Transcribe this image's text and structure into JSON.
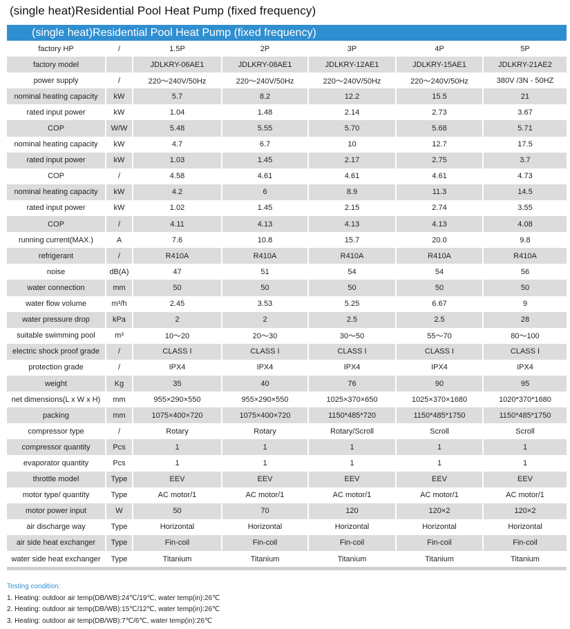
{
  "page_title": "(single heat)Residential Pool Heat Pump (fixed frequency)",
  "banner_title": "(single heat)Residential Pool Heat Pump (fixed frequency)",
  "colors": {
    "banner": "#2f8fd0",
    "row_shade": "#dcdcdc",
    "notes_title": "#2f8fd0"
  },
  "table": {
    "rows": [
      {
        "label": "factory HP",
        "unit": "/",
        "values": [
          "1.5P",
          "2P",
          "3P",
          "4P",
          "5P"
        ]
      },
      {
        "label": "factory model",
        "unit": "",
        "values": [
          "JDLKRY-06AE1",
          "JDLKRY-08AE1",
          "JDLKRY-12AE1",
          "JDLKRY-15AE1",
          "JDLKRY-21AE2"
        ]
      },
      {
        "label": "power supply",
        "unit": "/",
        "values": [
          "220～240V/50Hz",
          "220～240V/50Hz",
          "220～240V/50Hz",
          "220～240V/50Hz",
          "380V /3N - 50HZ"
        ]
      },
      {
        "label": "nominal heating capacity",
        "unit": "kW",
        "values": [
          "5.7",
          "8.2",
          "12.2",
          "15.5",
          "21"
        ]
      },
      {
        "label": "rated input power",
        "unit": "kW",
        "values": [
          "1.04",
          "1.48",
          "2.14",
          "2.73",
          "3.67"
        ]
      },
      {
        "label": "COP",
        "unit": "W/W",
        "values": [
          "5.48",
          "5.55",
          "5.70",
          "5.68",
          "5.71"
        ]
      },
      {
        "label": "nominal heating capacity",
        "unit": "kW",
        "values": [
          "4.7",
          "6.7",
          "10",
          "12.7",
          "17.5"
        ]
      },
      {
        "label": "rated input power",
        "unit": "kW",
        "values": [
          "1.03",
          "1.45",
          "2.17",
          "2.75",
          "3.7"
        ]
      },
      {
        "label": "COP",
        "unit": "/",
        "values": [
          "4.58",
          "4.61",
          "4.61",
          "4.61",
          "4.73"
        ]
      },
      {
        "label": "nominal heating capacity",
        "unit": "kW",
        "values": [
          "4.2",
          "6",
          "8.9",
          "11.3",
          "14.5"
        ]
      },
      {
        "label": "rated input power",
        "unit": "kW",
        "values": [
          "1.02",
          "1.45",
          "2.15",
          "2.74",
          "3.55"
        ]
      },
      {
        "label": "COP",
        "unit": "/",
        "values": [
          "4.11",
          "4.13",
          "4.13",
          "4.13",
          "4.08"
        ]
      },
      {
        "label": "running current(MAX.)",
        "unit": "A",
        "values": [
          "7.6",
          "10.8",
          "15.7",
          "20.0",
          "9.8"
        ]
      },
      {
        "label": "refrigerant",
        "unit": "/",
        "values": [
          "R410A",
          "R410A",
          "R410A",
          "R410A",
          "R410A"
        ]
      },
      {
        "label": "noise",
        "unit": "dB(A)",
        "values": [
          "47",
          "51",
          "54",
          "54",
          "56"
        ]
      },
      {
        "label": "water connection",
        "unit": "mm",
        "values": [
          "50",
          "50",
          "50",
          "50",
          "50"
        ]
      },
      {
        "label": "water flow volume",
        "unit": "m³/h",
        "values": [
          "2.45",
          "3.53",
          "5.25",
          "6.67",
          "9"
        ]
      },
      {
        "label": "water pressure drop",
        "unit": "kPa",
        "values": [
          "2",
          "2",
          "2.5",
          "2.5",
          "28"
        ]
      },
      {
        "label": "suitable swimming pool",
        "unit": "m³",
        "values": [
          "10～20",
          "20～30",
          "30～50",
          "55～70",
          "80～100"
        ]
      },
      {
        "label": "electric shock proof grade",
        "unit": "/",
        "values": [
          "CLASS I",
          "CLASS I",
          "CLASS I",
          "CLASS I",
          "CLASS I"
        ]
      },
      {
        "label": "protection grade",
        "unit": "/",
        "values": [
          "IPX4",
          "IPX4",
          "IPX4",
          "IPX4",
          "IPX4"
        ]
      },
      {
        "label": "weight",
        "unit": "Kg",
        "values": [
          "35",
          "40",
          "76",
          "90",
          "95"
        ]
      },
      {
        "label": "net dimensions(L x W x H)",
        "unit": "mm",
        "values": [
          "955×290×550",
          "955×290×550",
          "1025×370×650",
          "1025×370×1680",
          "1020*370*1680"
        ]
      },
      {
        "label": "packing",
        "unit": "mm",
        "values": [
          "1075×400×720",
          "1075×400×720",
          "1150*485*720",
          "1150*485*1750",
          "1150*485*1750"
        ]
      },
      {
        "label": "compressor type",
        "unit": "/",
        "values": [
          "Rotary",
          "Rotary",
          "Rotary/Scroll",
          "Scroll",
          "Scroll"
        ]
      },
      {
        "label": "compressor quantity",
        "unit": "Pcs",
        "values": [
          "1",
          "1",
          "1",
          "1",
          "1"
        ]
      },
      {
        "label": "evaporator quantity",
        "unit": "Pcs",
        "values": [
          "1",
          "1",
          "1",
          "1",
          "1"
        ]
      },
      {
        "label": "throttle model",
        "unit": "Type",
        "values": [
          "EEV",
          "EEV",
          "EEV",
          "EEV",
          "EEV"
        ]
      },
      {
        "label": "motor type/ quantity",
        "unit": "Type",
        "values": [
          "AC motor/1",
          "AC motor/1",
          "AC motor/1",
          "AC motor/1",
          "AC motor/1"
        ]
      },
      {
        "label": "motor power input",
        "unit": "W",
        "values": [
          "50",
          "70",
          "120",
          "120×2",
          "120×2"
        ]
      },
      {
        "label": "air discharge way",
        "unit": "Type",
        "values": [
          "Horizontal",
          "Horizontal",
          "Horizontal",
          "Horizontal",
          "Horizontal"
        ]
      },
      {
        "label": "air side heat exchanger",
        "unit": "Type",
        "values": [
          "Fin-coil",
          "Fin-coil",
          "Fin-coil",
          "Fin-coil",
          "Fin-coil"
        ]
      },
      {
        "label": "water side heat exchanger",
        "unit": "Type",
        "values": [
          "Titanium",
          "Titanium",
          "Titanium",
          "Titanium",
          "Titanium"
        ]
      }
    ]
  },
  "notes": {
    "title": "Testing condition:",
    "lines": [
      "1. Heating: outdoor air temp(DB/WB):24℃/19℃, water temp(in):26℃",
      "2. Heating: outdoor air temp(DB/WB):15℃/12℃, water temp(in):26℃",
      "3. Heating: outdoor air temp(DB/WB):7℃/6℃, water temp(in):26℃"
    ]
  }
}
